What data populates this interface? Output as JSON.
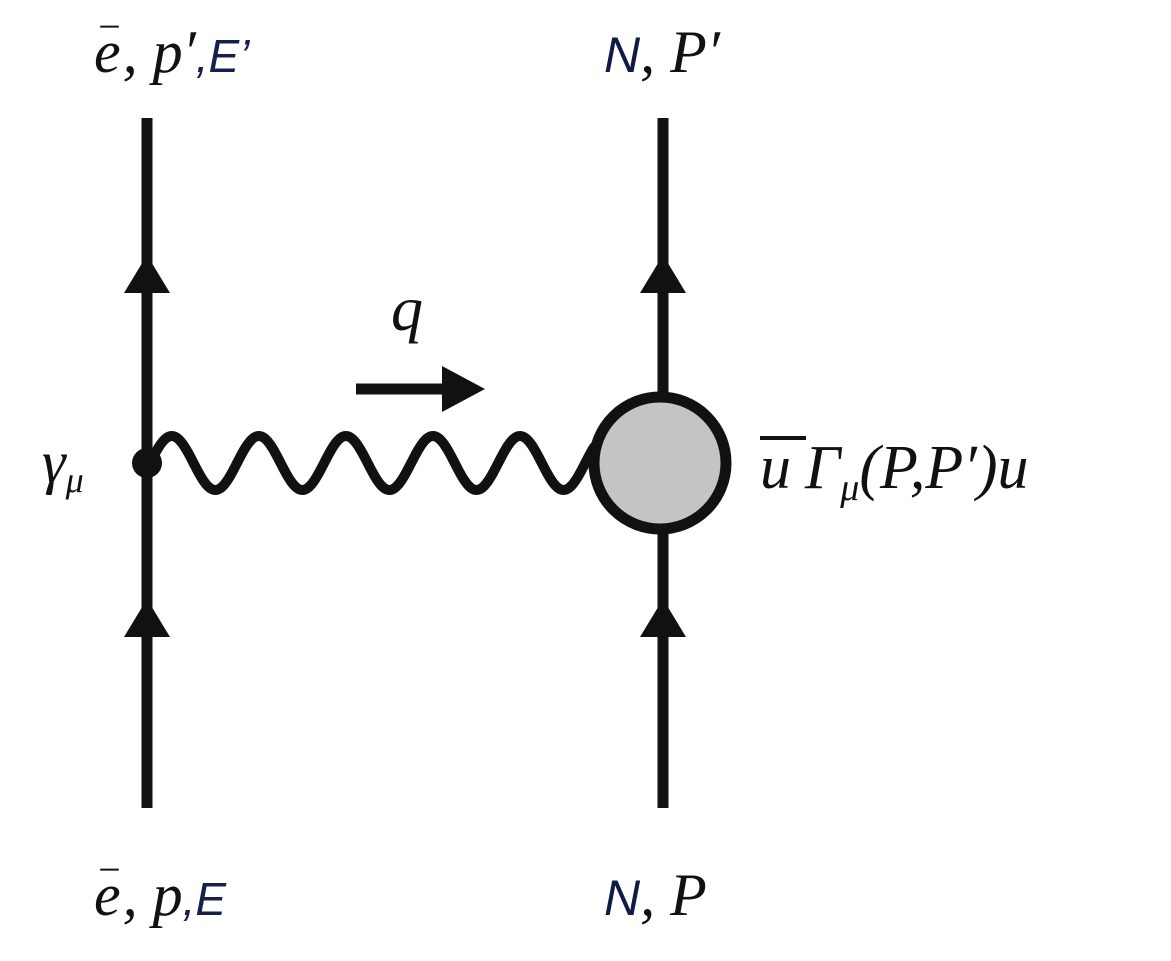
{
  "labels": {
    "electron_out": {
      "particle": "e",
      "charge": "−",
      "separator": ", ",
      "momentum": "p′",
      "energy_separator": ",",
      "energy": "E’"
    },
    "electron_in": {
      "particle": "e",
      "charge": "−",
      "separator": ", ",
      "momentum": "p",
      "energy_separator": ",",
      "energy": "E"
    },
    "nucleon_out": {
      "particle": "N",
      "separator": ", ",
      "momentum": "P′"
    },
    "nucleon_in": {
      "particle": "N",
      "separator": ", ",
      "momentum": "P"
    },
    "vertex": {
      "symbol": "γ",
      "subscript": "μ"
    },
    "photon_momentum": "q",
    "current": {
      "ubar": "u",
      "gamma": "Γ",
      "index": "μ",
      "args": "(P,P′)",
      "u": "u"
    }
  },
  "colors": {
    "line": "#111111",
    "blob_fill": "#c4c4c6",
    "energy_text": "#16204a",
    "nucleon_text": "#0f1a45",
    "text": "#111111"
  }
}
